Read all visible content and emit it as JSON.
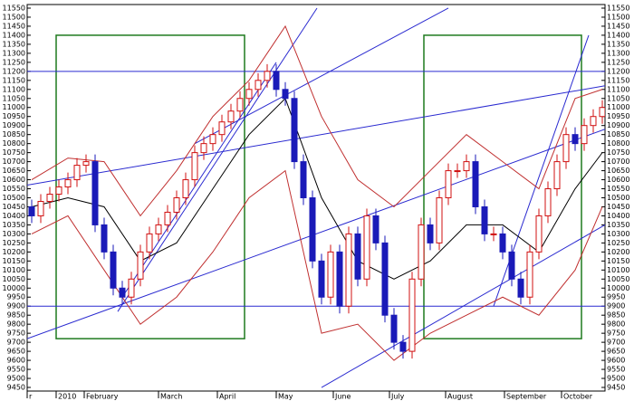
{
  "chart_data": {
    "type": "candlestick",
    "xlim": [
      -0.5,
      63.3
    ],
    "xticks": [
      {
        "value": -0.5,
        "label": "r"
      },
      {
        "value": 2.7,
        "label": "2010"
      },
      {
        "value": 5.8,
        "label": "February"
      },
      {
        "value": 14,
        "label": "March"
      },
      {
        "value": 20.5,
        "label": "April"
      },
      {
        "value": 27,
        "label": "May"
      },
      {
        "value": 33.3,
        "label": "June"
      },
      {
        "value": 39.5,
        "label": "July"
      },
      {
        "value": 45.7,
        "label": "August"
      },
      {
        "value": 52.2,
        "label": "September"
      },
      {
        "value": 58.5,
        "label": "October"
      }
    ],
    "ylim": [
      9430,
      11570
    ],
    "yticks": [
      9450,
      9500,
      9550,
      9600,
      9650,
      9700,
      9750,
      9800,
      9850,
      9900,
      9950,
      10000,
      10050,
      10100,
      10150,
      10200,
      10250,
      10300,
      10350,
      10400,
      10450,
      10500,
      10550,
      10600,
      10650,
      10700,
      10750,
      10800,
      10850,
      10900,
      10950,
      11000,
      11050,
      11100,
      11150,
      11200,
      11250,
      11300,
      11350,
      11400,
      11450,
      11500,
      11550
    ],
    "x": [
      0,
      1,
      2,
      3,
      4,
      5,
      6,
      7,
      8,
      9,
      10,
      11,
      12,
      13,
      14,
      15,
      16,
      17,
      18,
      19,
      20,
      21,
      22,
      23,
      24,
      25,
      26,
      27,
      28,
      29,
      30,
      31,
      32,
      33,
      34,
      35,
      36,
      37,
      38,
      39,
      40,
      41,
      42,
      43,
      44,
      45,
      46,
      47,
      48,
      49,
      50,
      51,
      52,
      53,
      54,
      55,
      56,
      57,
      58,
      59,
      60,
      61,
      62,
      63
    ],
    "open": [
      10450,
      10400,
      10480,
      10520,
      10560,
      10600,
      10680,
      10700,
      10350,
      10200,
      10000,
      9950,
      10050,
      10200,
      10300,
      10350,
      10420,
      10500,
      10600,
      10750,
      10800,
      10850,
      10920,
      10980,
      11050,
      11100,
      11150,
      11200,
      11100,
      11050,
      10700,
      10500,
      10150,
      9950,
      10200,
      9900,
      10300,
      10050,
      10400,
      10250,
      9850,
      9700,
      9650,
      10050,
      10350,
      10250,
      10500,
      10650,
      10650,
      10700,
      10450,
      10300,
      10300,
      10200,
      10050,
      9950,
      10200,
      10400,
      10550,
      10700,
      10850,
      10800,
      10900,
      10950
    ],
    "high": [
      10490,
      10520,
      10560,
      10600,
      10640,
      10720,
      10740,
      10740,
      10390,
      10240,
      10040,
      10090,
      10240,
      10340,
      10390,
      10460,
      10540,
      10640,
      10790,
      10840,
      10890,
      10960,
      11020,
      11090,
      11140,
      11190,
      11240,
      11240,
      11140,
      11090,
      10740,
      10540,
      10190,
      10240,
      10240,
      10340,
      10340,
      10440,
      10440,
      10290,
      9890,
      9740,
      10090,
      10390,
      10390,
      10540,
      10690,
      10690,
      10740,
      10740,
      10490,
      10340,
      10340,
      10240,
      10090,
      10240,
      10440,
      10590,
      10740,
      10890,
      10890,
      10940,
      10990,
      11040
    ],
    "low": [
      10360,
      10360,
      10440,
      10480,
      10520,
      10560,
      10640,
      10310,
      10160,
      9960,
      9910,
      9910,
      10010,
      10160,
      10260,
      10310,
      10380,
      10460,
      10560,
      10710,
      10760,
      10810,
      10880,
      10940,
      11010,
      11060,
      11110,
      11060,
      11010,
      10660,
      10460,
      10110,
      9910,
      9910,
      9860,
      9860,
      10010,
      10010,
      10210,
      9810,
      9660,
      9610,
      9610,
      10010,
      10210,
      10210,
      10460,
      10610,
      10610,
      10410,
      10260,
      10260,
      10160,
      10010,
      9910,
      9910,
      10160,
      10360,
      10510,
      10660,
      10760,
      10760,
      10860,
      10910
    ],
    "close": [
      10400,
      10480,
      10520,
      10560,
      10600,
      10680,
      10700,
      10350,
      10200,
      10000,
      9950,
      10050,
      10200,
      10300,
      10350,
      10420,
      10500,
      10600,
      10750,
      10800,
      10850,
      10920,
      10980,
      11050,
      11100,
      11150,
      11200,
      11100,
      11050,
      10700,
      10500,
      10150,
      9950,
      10200,
      9900,
      10300,
      10050,
      10400,
      10250,
      9850,
      9700,
      9650,
      10050,
      10350,
      10250,
      10500,
      10650,
      10650,
      10700,
      10450,
      10300,
      10300,
      10200,
      10050,
      9950,
      10200,
      10400,
      10550,
      10700,
      10850,
      10800,
      10900,
      10950,
      11000
    ],
    "up_color": "#d01010",
    "down_color": "#1a1ab8",
    "overlays": [
      {
        "color": "#c03030",
        "x": [
          0,
          4,
          8,
          12,
          16,
          20,
          24,
          28,
          32,
          36,
          40,
          44,
          48,
          52,
          56,
          60,
          63
        ],
        "values": [
          10600,
          10720,
          10700,
          10400,
          10650,
          10950,
          11150,
          11450,
          10950,
          10600,
          10450,
          10650,
          10850,
          10700,
          10550,
          11050,
          11100
        ]
      },
      {
        "color": "#c03030",
        "x": [
          0,
          4,
          8,
          12,
          16,
          20,
          24,
          28,
          32,
          36,
          40,
          44,
          48,
          52,
          56,
          60,
          63
        ],
        "values": [
          10300,
          10400,
          10100,
          9800,
          9950,
          10200,
          10500,
          10650,
          9750,
          9800,
          9600,
          9750,
          9850,
          9950,
          9850,
          10100,
          10450
        ]
      },
      {
        "color": "#000000",
        "x": [
          0,
          4,
          8,
          12,
          16,
          20,
          24,
          28,
          32,
          36,
          40,
          44,
          48,
          52,
          56,
          60,
          63
        ],
        "values": [
          10450,
          10500,
          10450,
          10150,
          10250,
          10550,
          10850,
          11050,
          10500,
          10150,
          10050,
          10150,
          10350,
          10350,
          10200,
          10550,
          10750
        ]
      }
    ],
    "trendline_color": "#2a2ad0",
    "trendlines": [
      {
        "x": [
          -0.5,
          63.3
        ],
        "y": [
          11200,
          11200
        ]
      },
      {
        "x": [
          -0.5,
          63.3
        ],
        "y": [
          9900,
          9900
        ]
      },
      {
        "x": [
          -0.5,
          63.3
        ],
        "y": [
          10570,
          11120
        ]
      },
      {
        "x": [
          -0.5,
          63.3
        ],
        "y": [
          9720,
          10880
        ]
      },
      {
        "x": [
          18,
          46
        ],
        "y": [
          10800,
          11550
        ]
      },
      {
        "x": [
          9.5,
          31.5
        ],
        "y": [
          9870,
          11550
        ]
      },
      {
        "x": [
          10,
          27
        ],
        "y": [
          9950,
          11250
        ]
      },
      {
        "x": [
          32,
          63.3
        ],
        "y": [
          9450,
          10350
        ]
      },
      {
        "x": [
          51,
          61.5
        ],
        "y": [
          9900,
          11400
        ]
      }
    ],
    "box_color": "#1f7a1f",
    "boxes": [
      {
        "x": [
          2.7,
          23.5
        ],
        "y": [
          9720,
          11400
        ]
      },
      {
        "x": [
          43.3,
          60.7
        ],
        "y": [
          9720,
          11400
        ]
      }
    ]
  }
}
